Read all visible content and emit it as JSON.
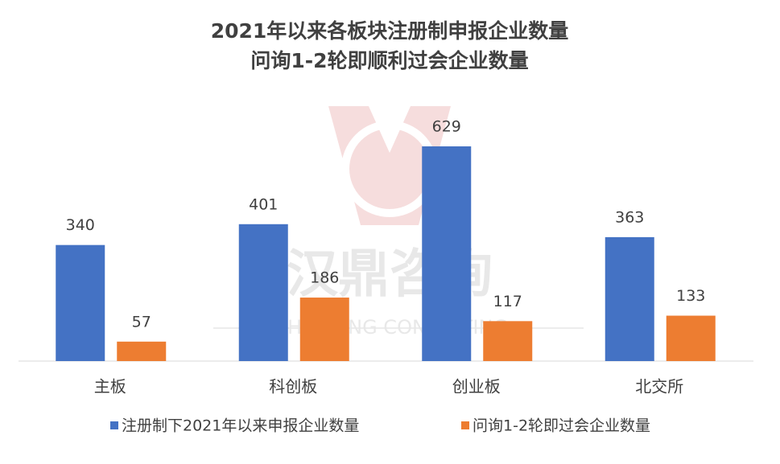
{
  "chart_data": {
    "type": "bar",
    "title": "2021年以来各板块注册制申报企业数量",
    "subtitle": "问询1-2轮即顺利过会企业数量",
    "categories": [
      "主板",
      "科创板",
      "创业板",
      "北交所"
    ],
    "series": [
      {
        "name": "注册制下2021年以来申报企业数量",
        "color": "#4472c4",
        "values": [
          340,
          401,
          629,
          363
        ]
      },
      {
        "name": "问询1-2轮即过会企业数量",
        "color": "#ed7d31",
        "values": [
          57,
          186,
          117,
          133
        ]
      }
    ],
    "legend": "bottom",
    "watermark": {
      "text": "汉鼎咨询",
      "subtext": "HEADING CONSULTING"
    }
  }
}
